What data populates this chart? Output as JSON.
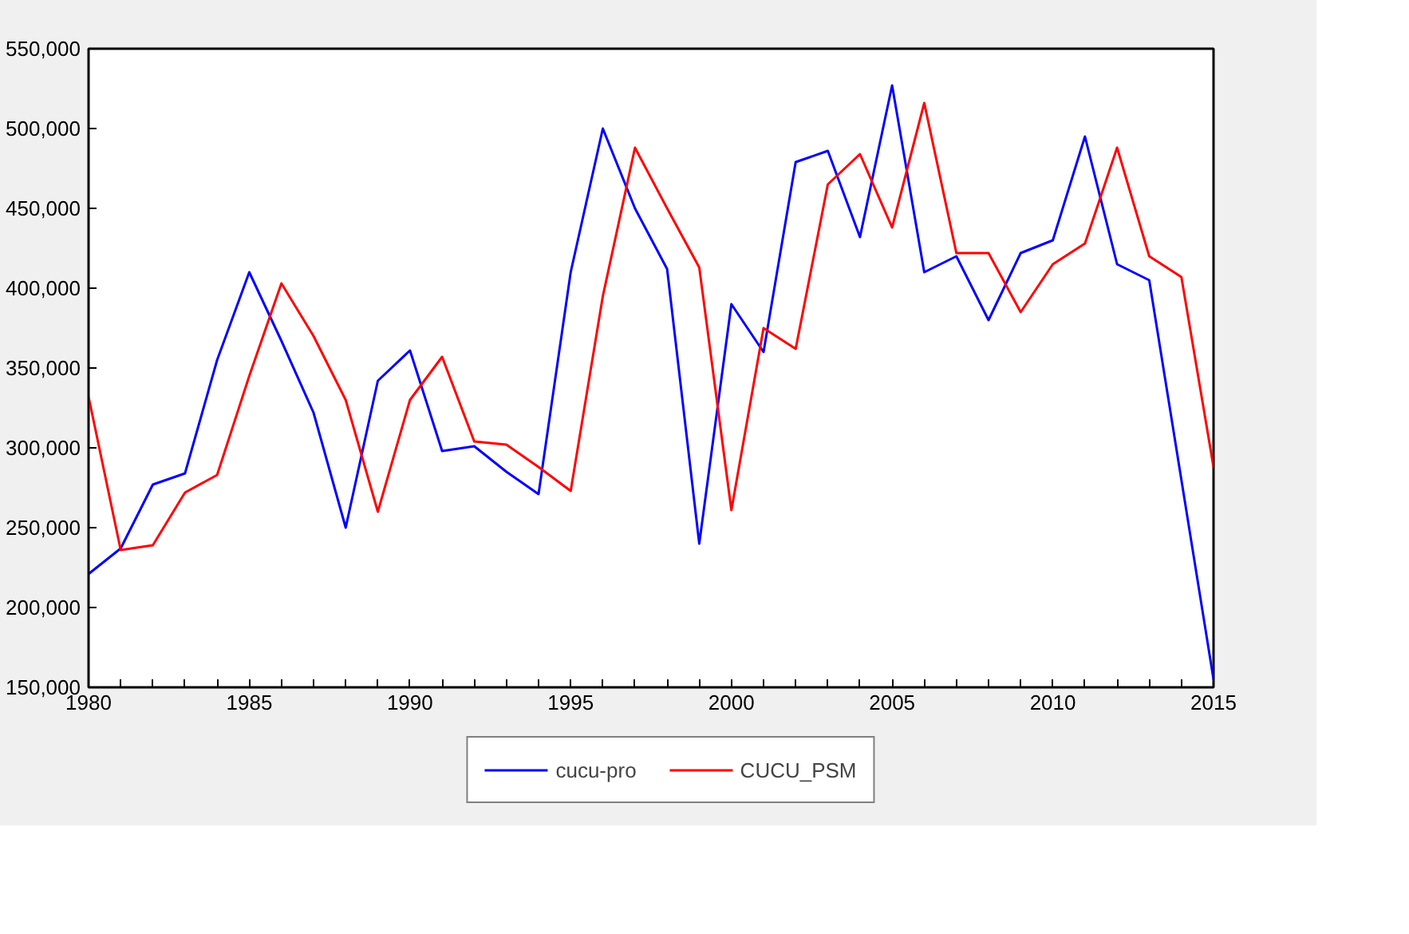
{
  "chart_data": {
    "type": "line",
    "x": [
      1980,
      1981,
      1982,
      1983,
      1984,
      1985,
      1986,
      1987,
      1988,
      1989,
      1990,
      1991,
      1992,
      1993,
      1994,
      1995,
      1996,
      1997,
      1998,
      1999,
      2000,
      2001,
      2002,
      2003,
      2004,
      2005,
      2006,
      2007,
      2008,
      2009,
      2010,
      2011,
      2012,
      2013,
      2014,
      2015
    ],
    "series": [
      {
        "name": "cucu-pro",
        "color": "#0000ff",
        "values": [
          221000,
          237000,
          277000,
          284000,
          355000,
          410000,
          367000,
          322000,
          250000,
          342000,
          361000,
          298000,
          301000,
          285000,
          271000,
          410000,
          500000,
          450000,
          412000,
          240000,
          390000,
          360000,
          479000,
          486000,
          432000,
          527000,
          410000,
          420000,
          380000,
          422000,
          430000,
          495000,
          415000,
          405000,
          280000,
          155000
        ]
      },
      {
        "name": "CUCU_PSM",
        "color": "#ff0000",
        "values": [
          332000,
          236000,
          239000,
          272000,
          283000,
          345000,
          403000,
          370000,
          330000,
          260000,
          330000,
          357000,
          304000,
          302000,
          288000,
          273000,
          395000,
          488000,
          450000,
          413000,
          261000,
          375000,
          362000,
          465000,
          484000,
          438000,
          516000,
          422000,
          422000,
          385000,
          415000,
          428000,
          488000,
          420000,
          407000,
          288000
        ]
      }
    ],
    "xlim": [
      1980,
      2015
    ],
    "xticks": [
      1980,
      {
        "value": 1981,
        "label": null
      },
      {
        "value": 1982,
        "label": null
      },
      {
        "value": 1983,
        "label": null
      },
      {
        "value": 1984,
        "label": null
      },
      1985,
      {
        "value": 1986,
        "label": null
      },
      {
        "value": 1987,
        "label": null
      },
      {
        "value": 1988,
        "label": null
      },
      {
        "value": 1989,
        "label": null
      },
      1990,
      {
        "value": 1991,
        "label": null
      },
      {
        "value": 1992,
        "label": null
      },
      {
        "value": 1993,
        "label": null
      },
      {
        "value": 1994,
        "label": null
      },
      1995,
      {
        "value": 1996,
        "label": null
      },
      {
        "value": 1997,
        "label": null
      },
      {
        "value": 1998,
        "label": null
      },
      {
        "value": 1999,
        "label": null
      },
      2000,
      {
        "value": 2001,
        "label": null
      },
      {
        "value": 2002,
        "label": null
      },
      {
        "value": 2003,
        "label": null
      },
      {
        "value": 2004,
        "label": null
      },
      2005,
      {
        "value": 2006,
        "label": null
      },
      {
        "value": 2007,
        "label": null
      },
      {
        "value": 2008,
        "label": null
      },
      {
        "value": 2009,
        "label": null
      },
      2010,
      {
        "value": 2011,
        "label": null
      },
      {
        "value": 2012,
        "label": null
      },
      {
        "value": 2013,
        "label": null
      },
      {
        "value": 2014,
        "label": null
      },
      2015
    ],
    "ylim": [
      150000,
      550000
    ],
    "yticks": [
      {
        "value": 150000,
        "label": "150,000"
      },
      {
        "value": 200000,
        "label": "200,000"
      },
      {
        "value": 250000,
        "label": "250,000"
      },
      {
        "value": 300000,
        "label": "300,000"
      },
      {
        "value": 350000,
        "label": "350,000"
      },
      {
        "value": 400000,
        "label": "400,000"
      },
      {
        "value": 450000,
        "label": "450,000"
      },
      {
        "value": 500000,
        "label": "500,000"
      },
      {
        "value": 550000,
        "label": "550,000"
      }
    ],
    "grid": false,
    "legend": "bottom",
    "marker": "none",
    "line_style": "solid"
  }
}
